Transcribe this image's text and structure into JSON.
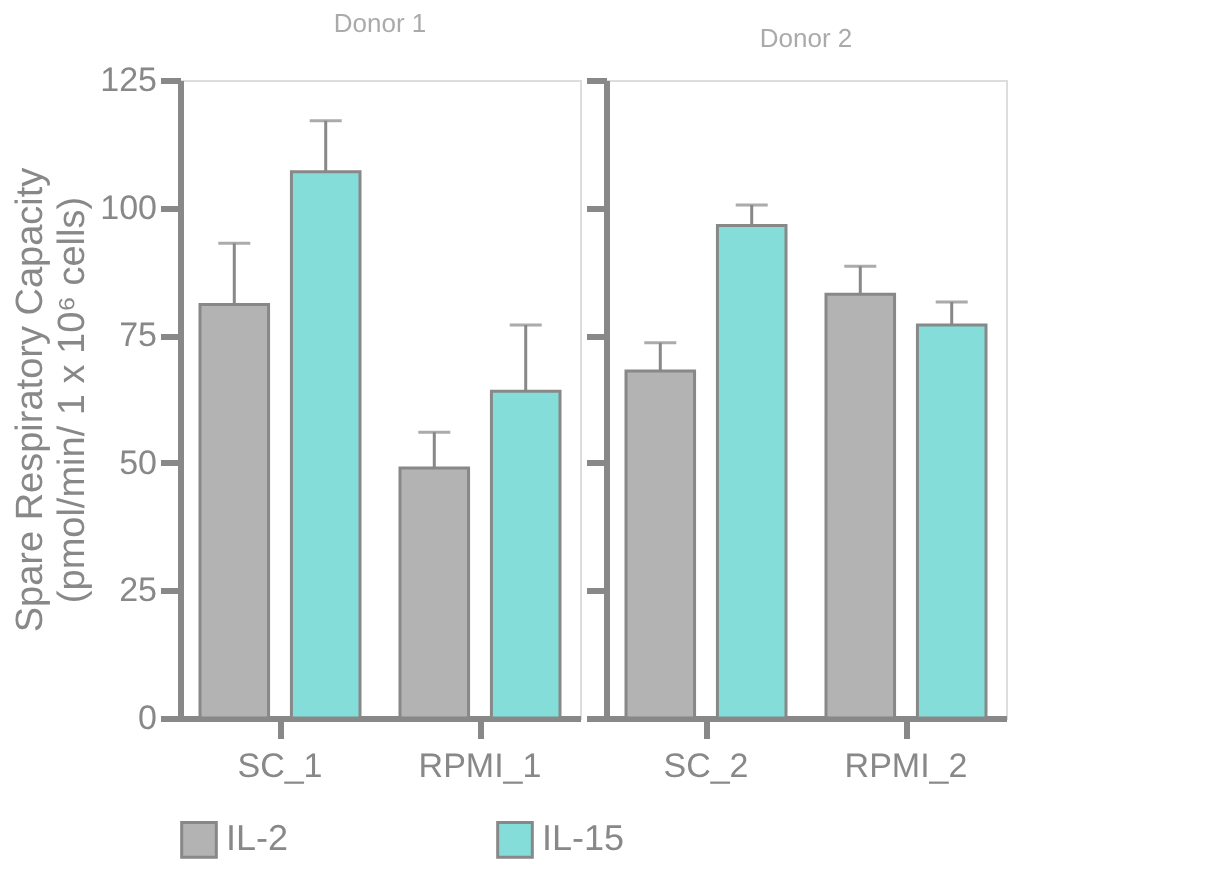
{
  "chart_data": [
    {
      "type": "bar",
      "title": "Donor 1",
      "ylabel": "Spare Respiratory Capacity\n(pmol/min/ 1 x 10⁶ cells)",
      "categories": [
        "SC_1",
        "RPMI_1"
      ],
      "ylim": [
        0,
        125
      ],
      "yticks": [
        0,
        25,
        50,
        75,
        100,
        125
      ],
      "legend": "bottom",
      "grid": false,
      "series": [
        {
          "name": "IL-2",
          "color": "#b3b3b3",
          "values": [
            81,
            49
          ],
          "errors": [
            [
              81,
              93
            ],
            [
              49,
              56
            ]
          ]
        },
        {
          "name": "IL-15",
          "color": "#84ddd9",
          "values": [
            107,
            64
          ],
          "errors": [
            [
              107,
              117
            ],
            [
              64,
              77
            ]
          ]
        }
      ]
    },
    {
      "type": "bar",
      "title": "Donor 2",
      "categories": [
        "SC_2",
        "RPMI_2"
      ],
      "ylim": [
        0,
        125
      ],
      "yticks": [
        0,
        25,
        50,
        75,
        100,
        125
      ],
      "tick_labels": "x",
      "legend": "bottom",
      "grid": false,
      "series": [
        {
          "name": "IL-2",
          "color": "#b3b3b3",
          "values": [
            68,
            83
          ],
          "errors": [
            [
              68,
              73.5
            ],
            [
              83,
              88.5
            ]
          ]
        },
        {
          "name": "IL-15",
          "color": "#84ddd9",
          "values": [
            96.5,
            77
          ],
          "errors": [
            [
              96.5,
              100.5
            ],
            [
              77,
              81.5
            ]
          ]
        }
      ]
    }
  ]
}
